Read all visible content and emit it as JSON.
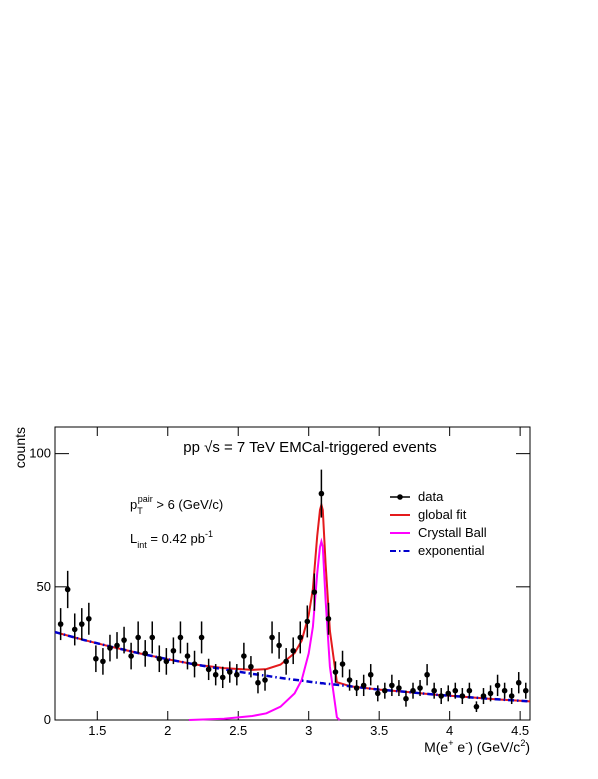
{
  "chart_data": {
    "type": "scatter",
    "title": "pp √s = 7 TeV EMCal-triggered events",
    "x_label": {
      "base": "M(e",
      "sup1": "+",
      "mid": " e",
      "sup2": "-",
      "rest": ") (GeV/c",
      "sup3": "2",
      "end": ")"
    },
    "y_label": "counts",
    "annotations": [
      {
        "base": "p",
        "sub": "T",
        "sup": "pair",
        "rest": " > 6 (GeV/c)"
      },
      {
        "base": "L",
        "sub": "int",
        "rest": " = 0.42 pb",
        "sup": "-1"
      }
    ],
    "xlim": [
      1.2,
      4.57
    ],
    "ylim": [
      0,
      110
    ],
    "xticks": [
      1.5,
      2,
      2.5,
      3,
      3.5,
      4,
      4.5
    ],
    "yticks": [
      0,
      50,
      100
    ],
    "legend": "top right",
    "series": [
      {
        "name": "data",
        "color": "#000000",
        "x": [
          1.24,
          1.29,
          1.34,
          1.39,
          1.44,
          1.49,
          1.54,
          1.59,
          1.64,
          1.69,
          1.74,
          1.79,
          1.84,
          1.89,
          1.94,
          1.99,
          2.04,
          2.09,
          2.14,
          2.19,
          2.24,
          2.29,
          2.34,
          2.39,
          2.44,
          2.49,
          2.54,
          2.59,
          2.64,
          2.69,
          2.74,
          2.79,
          2.84,
          2.89,
          2.94,
          2.99,
          3.04,
          3.09,
          3.14,
          3.19,
          3.24,
          3.29,
          3.34,
          3.39,
          3.44,
          3.49,
          3.54,
          3.59,
          3.64,
          3.69,
          3.74,
          3.79,
          3.84,
          3.89,
          3.94,
          3.99,
          4.04,
          4.09,
          4.14,
          4.19,
          4.24,
          4.29,
          4.34,
          4.39,
          4.44,
          4.49,
          4.54
        ],
        "values": [
          36,
          49,
          34,
          36,
          38,
          23,
          22,
          27,
          28,
          30,
          24,
          31,
          25,
          31,
          23,
          22,
          26,
          31,
          24,
          21,
          31,
          19,
          17,
          16,
          18,
          17,
          24,
          20,
          14,
          15,
          31,
          28,
          22,
          26,
          31,
          37,
          48,
          85,
          38,
          18,
          21,
          15,
          12,
          13,
          17,
          10,
          11,
          13,
          12,
          8,
          11,
          12,
          17,
          11,
          9,
          10,
          11,
          9,
          11,
          5,
          9,
          10,
          13,
          11,
          9,
          14,
          11
        ],
        "errors": [
          6,
          7,
          6,
          6,
          6,
          5,
          5,
          5,
          5,
          5,
          5,
          6,
          5,
          6,
          5,
          5,
          5,
          6,
          5,
          5,
          6,
          4,
          4,
          4,
          4,
          4,
          5,
          4,
          4,
          4,
          6,
          5,
          5,
          5,
          6,
          6,
          7,
          9,
          6,
          4,
          5,
          4,
          3,
          4,
          4,
          3,
          3,
          4,
          3,
          3,
          3,
          3,
          4,
          3,
          3,
          3,
          3,
          3,
          3,
          2,
          3,
          3,
          4,
          3,
          3,
          4,
          3
        ]
      },
      {
        "name": "global fit",
        "color": "#e41a1c",
        "style": "solid",
        "x": [
          1.2,
          1.4,
          1.6,
          1.8,
          2.0,
          2.2,
          2.4,
          2.6,
          2.7,
          2.8,
          2.9,
          2.95,
          3.0,
          3.03,
          3.06,
          3.08,
          3.09,
          3.1,
          3.12,
          3.15,
          3.2,
          3.3,
          3.5,
          3.7,
          3.9,
          4.1,
          4.3,
          4.57
        ],
        "values": [
          33,
          30.1,
          27.5,
          25.0,
          22.8,
          20.8,
          19.5,
          18.8,
          19.1,
          20.8,
          25.1,
          29.8,
          39.4,
          49.2,
          69,
          78.9,
          80.8,
          78.8,
          58.6,
          33.5,
          14.2,
          12.6,
          11.4,
          10.5,
          9.5,
          8.7,
          7.9,
          7.0
        ]
      },
      {
        "name": "Crystall Ball",
        "color": "#ff00ff",
        "style": "solid",
        "x": [
          2.15,
          2.4,
          2.6,
          2.7,
          2.8,
          2.9,
          2.95,
          3.0,
          3.03,
          3.06,
          3.08,
          3.09,
          3.1,
          3.12,
          3.15,
          3.2,
          3.22
        ],
        "values": [
          0,
          0.5,
          1.5,
          2.5,
          5,
          10,
          15,
          25,
          35,
          55,
          65,
          67,
          65,
          45,
          20,
          1,
          0
        ]
      },
      {
        "name": "exponential",
        "color": "#0000cc",
        "style": "dashdot",
        "x": [
          1.2,
          1.4,
          1.6,
          1.8,
          2.0,
          2.2,
          2.4,
          2.6,
          2.7,
          2.8,
          2.9,
          2.95,
          3.0,
          3.03,
          3.06,
          3.08,
          3.09,
          3.1,
          3.12,
          3.15,
          3.2,
          3.3,
          3.5,
          3.7,
          3.9,
          4.1,
          4.3,
          4.57
        ],
        "values": [
          33,
          30.1,
          27.5,
          25.0,
          22.8,
          20.8,
          19.0,
          17.3,
          16.6,
          15.8,
          15.1,
          14.8,
          14.4,
          14.2,
          14.0,
          13.9,
          13.8,
          13.8,
          13.6,
          13.5,
          13.2,
          12.6,
          11.4,
          10.5,
          9.5,
          8.7,
          7.9,
          7.0
        ]
      }
    ]
  }
}
